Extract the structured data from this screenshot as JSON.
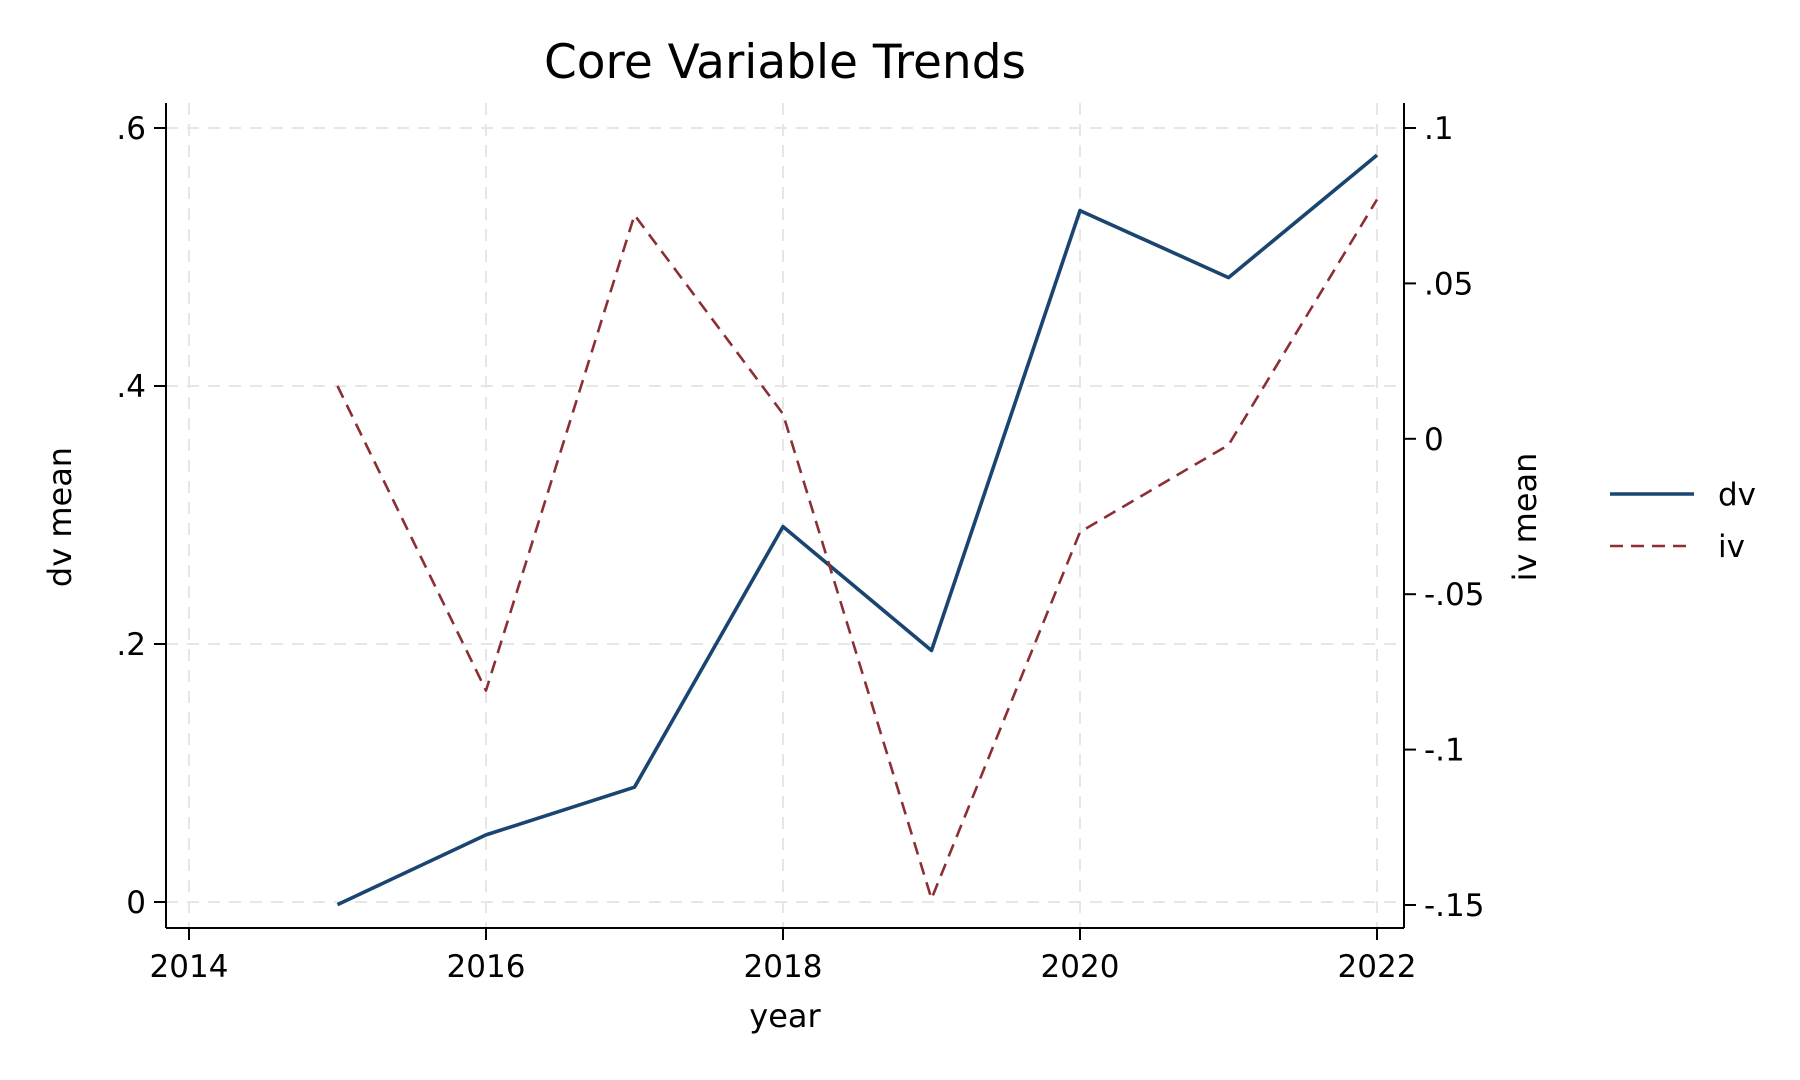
{
  "chart_data": {
    "type": "line",
    "title": "Core Variable Trends",
    "xlabel": "year",
    "ylabel_left": "dv mean",
    "ylabel_right": "iv mean",
    "x": [
      2015,
      2016,
      2017,
      2018,
      2019,
      2020,
      2021,
      2022
    ],
    "xlim": [
      2014,
      2022
    ],
    "xticks": [
      2014,
      2016,
      2018,
      2020,
      2022
    ],
    "ylim_left": [
      0,
      0.6
    ],
    "yticks_left": [
      0,
      0.2,
      0.4,
      0.6
    ],
    "ytick_labels_left": [
      "0",
      ".2",
      ".4",
      ".6"
    ],
    "ylim_right": [
      -0.15,
      0.1
    ],
    "yticks_right": [
      -0.15,
      -0.1,
      -0.05,
      0,
      0.05,
      0.1
    ],
    "ytick_labels_right": [
      "-.15",
      "-.1",
      "-.05",
      "0",
      ".05",
      ".1"
    ],
    "grid": true,
    "legend_position": "right",
    "series": [
      {
        "name": "dv",
        "axis": "left",
        "style": "solid",
        "color": "#1a4570",
        "values": [
          -0.002,
          0.052,
          0.089,
          0.291,
          0.195,
          0.536,
          0.484,
          0.579
        ]
      },
      {
        "name": "iv",
        "axis": "right",
        "style": "dashed",
        "color": "#8b2f35",
        "values": [
          0.017,
          -0.081,
          0.072,
          0.008,
          -0.148,
          -0.03,
          -0.002,
          0.077
        ]
      }
    ]
  }
}
